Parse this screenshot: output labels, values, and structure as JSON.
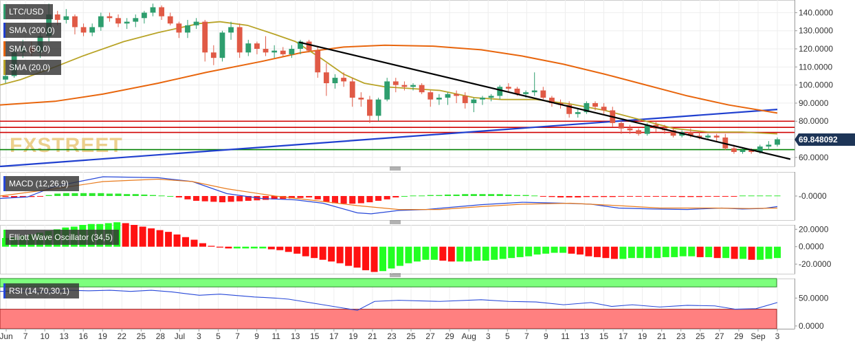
{
  "chart_data": [
    {
      "type": "candlestick",
      "title": "LTC/USD",
      "legend": [
        "LTC/USD",
        "SMA (200,0)",
        "SMA (50,0)",
        "SMA (20,0)"
      ],
      "watermark": "FXSTREET",
      "current_price": "69.848092",
      "ylim": [
        55,
        147
      ],
      "yticks": [
        "140.0000",
        "130.0000",
        "120.0000",
        "110.0000",
        "100.0000",
        "90.0000",
        "80.0000",
        "70.0000",
        "60.0000"
      ],
      "ytick_values": [
        140,
        130,
        120,
        110,
        100,
        90,
        80,
        70,
        60
      ],
      "x_labels": [
        "Jun",
        "7",
        "10",
        "13",
        "16",
        "19",
        "22",
        "25",
        "28",
        "Jul",
        "3",
        "5",
        "7",
        "9",
        "11",
        "13",
        "15",
        "17",
        "19",
        "21",
        "23",
        "25",
        "27",
        "29",
        "Aug",
        "3",
        "5",
        "7",
        "9",
        "11",
        "13",
        "15",
        "17",
        "19",
        "21",
        "23",
        "25",
        "27",
        "29",
        "Sep",
        "3"
      ],
      "candles": [
        [
          103,
          107,
          101,
          105
        ],
        [
          105,
          121,
          104,
          118
        ],
        [
          118,
          125,
          115,
          121
        ],
        [
          121,
          124,
          116,
          118
        ],
        [
          118,
          129,
          115,
          127
        ],
        [
          127,
          145,
          124,
          139
        ],
        [
          139,
          141,
          133,
          136
        ],
        [
          136,
          142,
          134,
          138
        ],
        [
          138,
          139,
          128,
          132
        ],
        [
          132,
          134,
          127,
          129
        ],
        [
          129,
          134,
          127,
          132
        ],
        [
          132,
          140,
          130,
          138
        ],
        [
          138,
          140,
          135,
          137
        ],
        [
          137,
          139,
          132,
          134
        ],
        [
          134,
          137,
          131,
          135
        ],
        [
          135,
          139,
          132,
          137
        ],
        [
          137,
          141,
          134,
          140
        ],
        [
          140,
          145,
          138,
          143
        ],
        [
          143,
          144,
          136,
          138
        ],
        [
          138,
          140,
          133,
          134
        ],
        [
          134,
          135,
          126,
          129
        ],
        [
          129,
          136,
          126,
          133
        ],
        [
          133,
          137,
          131,
          135
        ],
        [
          135,
          136,
          113,
          118
        ],
        [
          118,
          122,
          111,
          115
        ],
        [
          115,
          130,
          113,
          129
        ],
        [
          129,
          135,
          125,
          132
        ],
        [
          132,
          134,
          115,
          118
        ],
        [
          118,
          125,
          116,
          123
        ],
        [
          123,
          124,
          117,
          120
        ],
        [
          120,
          127,
          116,
          118
        ],
        [
          118,
          122,
          115,
          119
        ],
        [
          119,
          121,
          116,
          117
        ],
        [
          117,
          122,
          115,
          120
        ],
        [
          120,
          125,
          117,
          124
        ],
        [
          124,
          125,
          118,
          119
        ],
        [
          119,
          121,
          104,
          107
        ],
        [
          107,
          112,
          94,
          101
        ],
        [
          101,
          106,
          98,
          104
        ],
        [
          104,
          107,
          99,
          102
        ],
        [
          102,
          104,
          88,
          93
        ],
        [
          93,
          96,
          88,
          92
        ],
        [
          92,
          94,
          79,
          83
        ],
        [
          83,
          93,
          80,
          92
        ],
        [
          92,
          104,
          91,
          102
        ],
        [
          102,
          104,
          96,
          100
        ],
        [
          100,
          102,
          97,
          99
        ],
        [
          99,
          101,
          97,
          100
        ],
        [
          100,
          101,
          95,
          96
        ],
        [
          96,
          97,
          88,
          92
        ],
        [
          92,
          95,
          89,
          93
        ],
        [
          93,
          96,
          89,
          95
        ],
        [
          95,
          97,
          90,
          94
        ],
        [
          94,
          96,
          87,
          90
        ],
        [
          90,
          93,
          85,
          92
        ],
        [
          92,
          94,
          89,
          93
        ],
        [
          93,
          95,
          91,
          94
        ],
        [
          94,
          100,
          92,
          99
        ],
        [
          99,
          101,
          96,
          98
        ],
        [
          98,
          99,
          94,
          95
        ],
        [
          95,
          97,
          93,
          96
        ],
        [
          96,
          107,
          94,
          97
        ],
        [
          97,
          99,
          92,
          93
        ],
        [
          93,
          94,
          88,
          90
        ],
        [
          90,
          92,
          87,
          89
        ],
        [
          89,
          91,
          82,
          84
        ],
        [
          84,
          87,
          82,
          85
        ],
        [
          85,
          91,
          84,
          90
        ],
        [
          90,
          91,
          86,
          88
        ],
        [
          88,
          90,
          84,
          86
        ],
        [
          86,
          88,
          77,
          79
        ],
        [
          79,
          80,
          73,
          76
        ],
        [
          76,
          78,
          73,
          75
        ],
        [
          75,
          76,
          72,
          73
        ],
        [
          73,
          79,
          72,
          78
        ],
        [
          78,
          80,
          74,
          76
        ],
        [
          76,
          78,
          73,
          75
        ],
        [
          75,
          76,
          71,
          72
        ],
        [
          72,
          75,
          71,
          74
        ],
        [
          74,
          76,
          71,
          72
        ],
        [
          72,
          74,
          70,
          71
        ],
        [
          71,
          73,
          70,
          72
        ],
        [
          72,
          73,
          69,
          71
        ],
        [
          71,
          73,
          64,
          65
        ],
        [
          65,
          67,
          62,
          63
        ],
        [
          63,
          65,
          62,
          64
        ],
        [
          64,
          65,
          62,
          63
        ],
        [
          63,
          67,
          62,
          66
        ],
        [
          66,
          69,
          64,
          67
        ],
        [
          67,
          71,
          66,
          70
        ]
      ],
      "sma200": [
        [
          0,
          55
        ],
        [
          1131,
          86.5
        ]
      ],
      "sma50": [
        [
          0,
          89
        ],
        [
          80,
          91
        ],
        [
          150,
          95
        ],
        [
          230,
          101
        ],
        [
          300,
          107
        ],
        [
          380,
          113
        ],
        [
          440,
          118
        ],
        [
          500,
          121
        ],
        [
          560,
          122
        ],
        [
          630,
          121.5
        ],
        [
          700,
          119.5
        ],
        [
          760,
          116
        ],
        [
          820,
          111.5
        ],
        [
          880,
          106
        ],
        [
          940,
          100
        ],
        [
          1000,
          94
        ],
        [
          1060,
          89
        ],
        [
          1131,
          84.5
        ]
      ],
      "sma20": [
        [
          0,
          100
        ],
        [
          30,
          103
        ],
        [
          80,
          110
        ],
        [
          120,
          116
        ],
        [
          180,
          124
        ],
        [
          230,
          129
        ],
        [
          290,
          134
        ],
        [
          320,
          135
        ],
        [
          360,
          133
        ],
        [
          400,
          128
        ],
        [
          430,
          124
        ],
        [
          470,
          114
        ],
        [
          500,
          106
        ],
        [
          530,
          101
        ],
        [
          560,
          99
        ],
        [
          600,
          98
        ],
        [
          640,
          97
        ],
        [
          690,
          93
        ],
        [
          730,
          92
        ],
        [
          780,
          92
        ],
        [
          830,
          89.5
        ],
        [
          880,
          86
        ],
        [
          930,
          81
        ],
        [
          980,
          76
        ],
        [
          1030,
          74
        ],
        [
          1080,
          74
        ],
        [
          1131,
          73
        ]
      ],
      "horizontal_levels": [
        {
          "y": 80,
          "color": "#d00000"
        },
        {
          "y": 76.6,
          "color": "#d00000"
        },
        {
          "y": 73.8,
          "color": "#d00000"
        },
        {
          "y": 64.3,
          "color": "#008000"
        }
      ],
      "trendline": [
        [
          435,
          123.7
        ],
        [
          1150,
          59
        ]
      ]
    },
    {
      "type": "bar+line",
      "title": "MACD (12,26,9)",
      "ylim": [
        -0.5,
        0.5
      ],
      "yticks": [
        "-0.0000"
      ],
      "ytick_values": [
        0
      ],
      "histogram": [
        -0.02,
        -0.03,
        -0.03,
        -0.02,
        -0.01,
        0.02,
        0.05,
        0.06,
        0.06,
        0.06,
        0.06,
        0.06,
        0.05,
        0.05,
        0.04,
        0.04,
        0.03,
        0.02,
        0.01,
        0,
        -0.03,
        -0.07,
        -0.1,
        -0.11,
        -0.12,
        -0.13,
        -0.12,
        -0.11,
        -0.1,
        -0.09,
        -0.08,
        -0.07,
        -0.06,
        -0.05,
        -0.04,
        -0.03,
        -0.07,
        -0.12,
        -0.15,
        -0.16,
        -0.16,
        -0.15,
        -0.13,
        -0.1,
        -0.07,
        -0.03,
        0,
        0.01,
        0.01,
        0.02,
        0.02,
        0.03,
        0.03,
        0.04,
        0.04,
        0.04,
        0.04,
        0.04,
        0.03,
        0.02,
        0.02,
        0.01,
        -0.01,
        -0.02,
        -0.03,
        -0.03,
        -0.03,
        -0.02,
        -0.02,
        -0.02,
        -0.02,
        -0.01,
        -0.01,
        -0.01,
        -0.01,
        -0.01,
        -0.01,
        -0.01,
        -0.02,
        -0.02,
        -0.02,
        -0.01,
        -0.01,
        -0.01,
        -0.01,
        0.01,
        0.01,
        0.01,
        0.01,
        0.01
      ],
      "macd": [
        [
          0,
          -0.05
        ],
        [
          40,
          -0.02
        ],
        [
          80,
          0.2
        ],
        [
          150,
          0.4
        ],
        [
          230,
          0.38
        ],
        [
          280,
          0.3
        ],
        [
          330,
          0.05
        ],
        [
          380,
          -0.05
        ],
        [
          430,
          -0.08
        ],
        [
          470,
          -0.15
        ],
        [
          520,
          -0.35
        ],
        [
          540,
          -0.37
        ],
        [
          580,
          -0.3
        ],
        [
          620,
          -0.28
        ],
        [
          700,
          -0.18
        ],
        [
          760,
          -0.13
        ],
        [
          820,
          -0.15
        ],
        [
          860,
          -0.17
        ],
        [
          900,
          -0.25
        ],
        [
          950,
          -0.27
        ],
        [
          1000,
          -0.28
        ],
        [
          1050,
          -0.25
        ],
        [
          1080,
          -0.27
        ],
        [
          1110,
          -0.26
        ],
        [
          1131,
          -0.22
        ]
      ],
      "signal": [
        [
          0,
          0
        ],
        [
          80,
          0.15
        ],
        [
          150,
          0.3
        ],
        [
          230,
          0.35
        ],
        [
          280,
          0.3
        ],
        [
          330,
          0.15
        ],
        [
          400,
          0
        ],
        [
          450,
          -0.08
        ],
        [
          520,
          -0.2
        ],
        [
          580,
          -0.28
        ],
        [
          640,
          -0.28
        ],
        [
          700,
          -0.22
        ],
        [
          760,
          -0.17
        ],
        [
          830,
          -0.15
        ],
        [
          900,
          -0.2
        ],
        [
          960,
          -0.25
        ],
        [
          1040,
          -0.25
        ],
        [
          1090,
          -0.26
        ],
        [
          1131,
          -0.25
        ]
      ]
    },
    {
      "type": "bar",
      "title": "Elliott Wave Oscillator (34,5)",
      "ylim": [
        -31,
        25
      ],
      "yticks": [
        "20.0000",
        "0.0000",
        "-20.0000"
      ],
      "ytick_values": [
        20,
        0,
        -20
      ],
      "values": [
        10,
        11,
        13,
        14,
        16,
        18,
        20,
        22,
        23,
        25,
        26,
        26,
        27,
        28,
        27,
        25,
        23,
        21,
        19,
        17,
        14,
        11,
        8,
        4,
        1,
        -1,
        -2,
        -2,
        -2,
        -2,
        -2,
        -3,
        -4,
        -6,
        -8,
        -11,
        -13,
        -15,
        -17,
        -19,
        -22,
        -24,
        -27,
        -29,
        -28,
        -25,
        -22,
        -19,
        -17,
        -15,
        -15,
        -16,
        -17,
        -17,
        -17,
        -16,
        -16,
        -15,
        -14,
        -13,
        -12,
        -11,
        -9,
        -8,
        -7,
        -7,
        -8,
        -9,
        -11,
        -12,
        -13,
        -14,
        -14,
        -13,
        -13,
        -13,
        -13,
        -12,
        -12,
        -11,
        -11,
        -12,
        -12,
        -13,
        -13,
        -14,
        -14,
        -15,
        -15,
        -14,
        -13
      ]
    },
    {
      "type": "line",
      "title": "RSI (14,70,30,1)",
      "ylim": [
        -5,
        85
      ],
      "yticks": [
        "50.0000",
        "0.0000"
      ],
      "ytick_values": [
        50,
        0
      ],
      "overbought": 70,
      "oversold": 30,
      "rsi": [
        [
          0,
          62
        ],
        [
          40,
          63
        ],
        [
          70,
          61
        ],
        [
          100,
          64
        ],
        [
          130,
          63
        ],
        [
          160,
          64
        ],
        [
          190,
          62
        ],
        [
          220,
          64
        ],
        [
          250,
          61
        ],
        [
          270,
          58
        ],
        [
          290,
          55
        ],
        [
          320,
          57
        ],
        [
          340,
          55
        ],
        [
          370,
          52
        ],
        [
          400,
          50
        ],
        [
          420,
          48
        ],
        [
          440,
          44
        ],
        [
          460,
          40
        ],
        [
          490,
          34
        ],
        [
          520,
          28
        ],
        [
          545,
          44
        ],
        [
          580,
          46
        ],
        [
          640,
          44
        ],
        [
          700,
          47
        ],
        [
          740,
          44
        ],
        [
          780,
          43
        ],
        [
          820,
          38
        ],
        [
          860,
          42
        ],
        [
          890,
          35
        ],
        [
          920,
          38
        ],
        [
          960,
          34
        ],
        [
          1000,
          37
        ],
        [
          1040,
          36
        ],
        [
          1070,
          30
        ],
        [
          1100,
          31
        ],
        [
          1131,
          42
        ]
      ]
    }
  ]
}
